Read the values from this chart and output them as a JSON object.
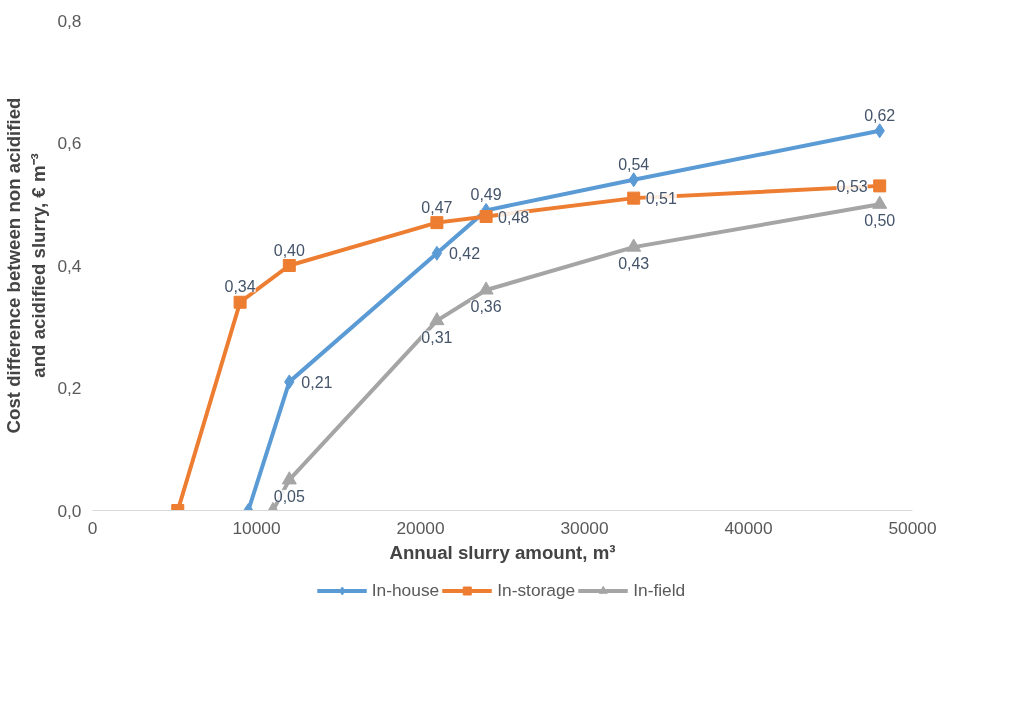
{
  "chart_data": {
    "type": "line",
    "xlabel": "Annual slurry amount, m³",
    "ylabel": "Cost difference between non acidified\nand acidified slurry, € m⁻³",
    "xlim": [
      0,
      50000
    ],
    "xticks": [
      0,
      10000,
      20000,
      30000,
      40000,
      50000
    ],
    "ylim": [
      0,
      0.8
    ],
    "yticks": [
      {
        "value": 0,
        "label": "0,0"
      },
      {
        "value": 0.2,
        "label": "0,2"
      },
      {
        "value": 0.4,
        "label": "0,4"
      },
      {
        "value": 0.6,
        "label": "0,6"
      },
      {
        "value": 0.8,
        "label": "0,8"
      }
    ],
    "grid": false,
    "legend": "bottom",
    "series": [
      {
        "name": "In-house",
        "color": "#5b9bd5",
        "marker": "diamond",
        "x": [
          9500,
          12000,
          21000,
          24000,
          33000,
          48000
        ],
        "values": [
          0,
          0.21,
          0.42,
          0.49,
          0.54,
          0.62
        ],
        "value_labels": [
          null,
          "0,21",
          "0,42",
          "0,49",
          "0,54",
          "0,62"
        ]
      },
      {
        "name": "In-storage",
        "color": "#ed7d31",
        "marker": "square",
        "x": [
          5200,
          9000,
          12000,
          21000,
          24000,
          33000,
          48000
        ],
        "values": [
          0,
          0.34,
          0.4,
          0.47,
          0.48,
          0.51,
          0.53
        ],
        "value_labels": [
          null,
          "0,34",
          "0,40",
          "0,47",
          "0,48",
          "0,51",
          "0,53"
        ]
      },
      {
        "name": "In-field",
        "color": "#a5a5a5",
        "marker": "triangle",
        "x": [
          11000,
          12000,
          21000,
          24000,
          33000,
          48000
        ],
        "values": [
          0,
          0.05,
          0.31,
          0.36,
          0.43,
          0.5
        ],
        "value_labels": [
          null,
          "0,05",
          "0,31",
          "0,36",
          "0,43",
          "0,50"
        ]
      }
    ]
  }
}
